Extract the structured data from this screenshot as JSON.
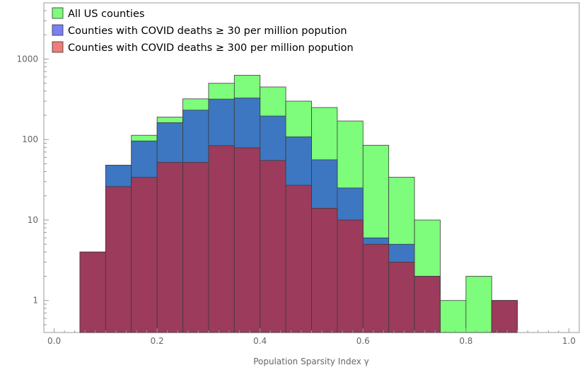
{
  "chart_data": {
    "type": "bar",
    "subtype": "histogram",
    "xlabel": "Population Sparsity Index γ",
    "ylabel": "",
    "xlim": [
      -0.02,
      1.02
    ],
    "ylim": [
      0.4,
      5000
    ],
    "yscale": "log",
    "x_ticks": [
      "0.0",
      "0.2",
      "0.4",
      "0.6",
      "0.8",
      "1.0"
    ],
    "y_ticks": [
      "1",
      "10",
      "100",
      "1000"
    ],
    "bin_width": 0.05,
    "legend_position": "top-left",
    "grid": false,
    "series": [
      {
        "name": "All US counties",
        "color": "#7dfd7b",
        "bins": [
          {
            "x0": 0.05,
            "v": 4
          },
          {
            "x0": 0.1,
            "v": 48
          },
          {
            "x0": 0.15,
            "v": 113
          },
          {
            "x0": 0.2,
            "v": 190
          },
          {
            "x0": 0.25,
            "v": 320
          },
          {
            "x0": 0.3,
            "v": 500
          },
          {
            "x0": 0.35,
            "v": 630
          },
          {
            "x0": 0.4,
            "v": 450
          },
          {
            "x0": 0.45,
            "v": 300
          },
          {
            "x0": 0.5,
            "v": 250
          },
          {
            "x0": 0.55,
            "v": 170
          },
          {
            "x0": 0.6,
            "v": 85
          },
          {
            "x0": 0.65,
            "v": 34
          },
          {
            "x0": 0.7,
            "v": 10
          },
          {
            "x0": 0.75,
            "v": 1
          },
          {
            "x0": 0.8,
            "v": 2
          },
          {
            "x0": 0.85,
            "v": 1
          }
        ]
      },
      {
        "name": "Counties with COVID deaths ≥ 30 per million popution",
        "color": "#3d77c2",
        "legend_color": "#7a7ff5",
        "bins": [
          {
            "x0": 0.05,
            "v": 4
          },
          {
            "x0": 0.1,
            "v": 48
          },
          {
            "x0": 0.15,
            "v": 96
          },
          {
            "x0": 0.2,
            "v": 162
          },
          {
            "x0": 0.25,
            "v": 232
          },
          {
            "x0": 0.3,
            "v": 318
          },
          {
            "x0": 0.35,
            "v": 328
          },
          {
            "x0": 0.4,
            "v": 196
          },
          {
            "x0": 0.45,
            "v": 108
          },
          {
            "x0": 0.5,
            "v": 56
          },
          {
            "x0": 0.55,
            "v": 25
          },
          {
            "x0": 0.6,
            "v": 6
          },
          {
            "x0": 0.65,
            "v": 5
          },
          {
            "x0": 0.7,
            "v": 2
          },
          {
            "x0": 0.85,
            "v": 1
          }
        ]
      },
      {
        "name": "Counties with COVID deaths ≥ 300 per million popution",
        "color": "#9c3b5c",
        "legend_color": "#f07c7a",
        "bins": [
          {
            "x0": 0.05,
            "v": 4
          },
          {
            "x0": 0.1,
            "v": 26
          },
          {
            "x0": 0.15,
            "v": 34
          },
          {
            "x0": 0.2,
            "v": 52
          },
          {
            "x0": 0.25,
            "v": 52
          },
          {
            "x0": 0.3,
            "v": 84
          },
          {
            "x0": 0.35,
            "v": 79
          },
          {
            "x0": 0.4,
            "v": 55
          },
          {
            "x0": 0.45,
            "v": 27
          },
          {
            "x0": 0.5,
            "v": 14
          },
          {
            "x0": 0.55,
            "v": 10
          },
          {
            "x0": 0.6,
            "v": 5
          },
          {
            "x0": 0.65,
            "v": 3
          },
          {
            "x0": 0.7,
            "v": 2
          },
          {
            "x0": 0.85,
            "v": 1
          }
        ]
      }
    ]
  }
}
